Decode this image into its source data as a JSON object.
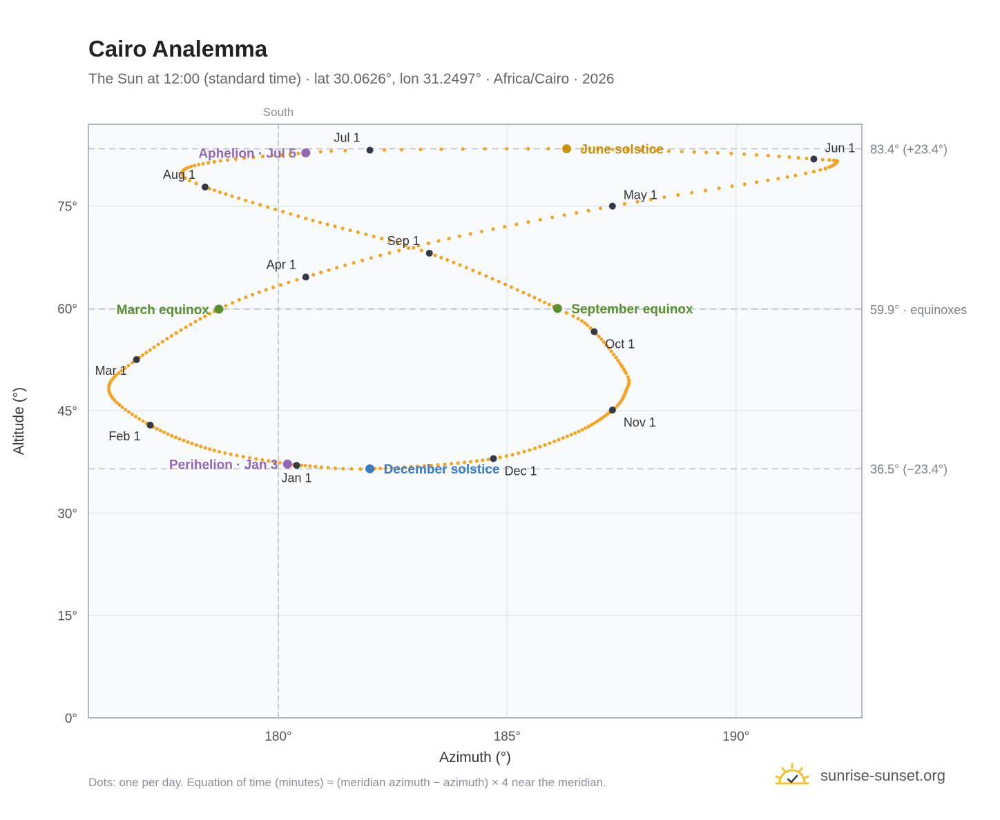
{
  "header": {
    "title": "Cairo Analemma",
    "subtitle": "The Sun at 12:00 (standard time) · lat 30.0626°, lon 31.2497° · Africa/Cairo · 2026"
  },
  "footer": {
    "note": "Dots: one per day. Equation of time (minutes) ≈ (meridian azimuth − azimuth) × 4 near the meridian.",
    "brand": "sunrise-sunset.org",
    "brand_icon": "sun-logo-icon"
  },
  "colors": {
    "curve": "#f2a42a",
    "marker": "#333a45",
    "equinox": "#5a8f32",
    "june_solstice": "#c9900f",
    "december_solstice": "#3a7bbf",
    "apsis": "#9466b3",
    "plot_bg": "#f8fafc",
    "grid": "#e3e8ee",
    "frame": "#9aa3ae",
    "refline": "#b4c0c8"
  },
  "chart_data": {
    "type": "scatter",
    "title": "Cairo Analemma",
    "xlabel": "Azimuth (°)",
    "ylabel": "Altitude (°)",
    "xlim": [
      175.85,
      192.75
    ],
    "ylim": [
      0,
      87
    ],
    "x_ticks": [
      {
        "value": 180,
        "label": "180°"
      },
      {
        "value": 185,
        "label": "185°"
      },
      {
        "value": 190,
        "label": "190°"
      }
    ],
    "y_ticks": [
      {
        "value": 0,
        "label": "0°"
      },
      {
        "value": 15,
        "label": "15°"
      },
      {
        "value": 30,
        "label": "30°"
      },
      {
        "value": 45,
        "label": "45°"
      },
      {
        "value": 60,
        "label": "60°"
      },
      {
        "value": 75,
        "label": "75°"
      }
    ],
    "grid": true,
    "south_line": {
      "azimuth": 180,
      "label": "South"
    },
    "reference_lines": [
      {
        "altitude": 83.4,
        "label": "83.4° (+23.4°)"
      },
      {
        "altitude": 59.9,
        "label": "59.9° · equinoxes"
      },
      {
        "altitude": 36.5,
        "label": "36.5° (−23.4°)"
      }
    ],
    "series": [
      {
        "marker": "daily-dot",
        "points": [
          {
            "date": "Jan 1",
            "azimuth": 180.4,
            "altitude": 37.0
          },
          {
            "date": "Jan 16",
            "azimuth": 178.6,
            "altitude": 39.2
          },
          {
            "date": "Feb 1",
            "azimuth": 177.2,
            "altitude": 42.9
          },
          {
            "date": "Feb 16",
            "azimuth": 176.3,
            "altitude": 47.9
          },
          {
            "date": "Mar 1",
            "azimuth": 176.9,
            "altitude": 52.5
          },
          {
            "date": "Mar 20",
            "azimuth": 178.7,
            "altitude": 59.9
          },
          {
            "date": "Apr 1",
            "azimuth": 180.6,
            "altitude": 64.6
          },
          {
            "date": "Apr 16",
            "azimuth": 183.5,
            "altitude": 69.9
          },
          {
            "date": "May 1",
            "azimuth": 187.3,
            "altitude": 75.0
          },
          {
            "date": "May 16",
            "azimuth": 191.3,
            "altitude": 79.5
          },
          {
            "date": "May 26",
            "azimuth": 192.2,
            "altitude": 81.4
          },
          {
            "date": "Jun 1",
            "azimuth": 191.7,
            "altitude": 81.9
          },
          {
            "date": "Jun 10",
            "azimuth": 189.6,
            "altitude": 82.8
          },
          {
            "date": "Jun 21",
            "azimuth": 186.3,
            "altitude": 83.4
          },
          {
            "date": "Jul 1",
            "azimuth": 182.0,
            "altitude": 83.2
          },
          {
            "date": "Jul 5",
            "azimuth": 180.6,
            "altitude": 82.8
          },
          {
            "date": "Jul 16",
            "azimuth": 178.6,
            "altitude": 81.5
          },
          {
            "date": "Jul 26",
            "azimuth": 177.9,
            "altitude": 80.0
          },
          {
            "date": "Aug 1",
            "azimuth": 178.4,
            "altitude": 77.8
          },
          {
            "date": "Aug 16",
            "azimuth": 180.6,
            "altitude": 73.2
          },
          {
            "date": "Sep 1",
            "azimuth": 183.3,
            "altitude": 68.1
          },
          {
            "date": "Sep 23",
            "azimuth": 186.1,
            "altitude": 60.0
          },
          {
            "date": "Oct 1",
            "azimuth": 186.9,
            "altitude": 56.6
          },
          {
            "date": "Oct 16",
            "azimuth": 187.6,
            "altitude": 50.5
          },
          {
            "date": "Oct 23",
            "azimuth": 187.6,
            "altitude": 48.0
          },
          {
            "date": "Nov 1",
            "azimuth": 187.3,
            "altitude": 45.1
          },
          {
            "date": "Nov 16",
            "azimuth": 186.4,
            "altitude": 41.5
          },
          {
            "date": "Dec 1",
            "azimuth": 184.7,
            "altitude": 38.0
          },
          {
            "date": "Dec 21",
            "azimuth": 182.0,
            "altitude": 36.5
          },
          {
            "date": "Dec 31",
            "azimuth": 180.5,
            "altitude": 37.0
          }
        ]
      }
    ],
    "month_markers": [
      {
        "label": "Jan 1",
        "azimuth": 180.4,
        "altitude": 37.0,
        "label_pos": "below"
      },
      {
        "label": "Feb 1",
        "azimuth": 177.2,
        "altitude": 42.9,
        "label_pos": "below-left"
      },
      {
        "label": "Mar 1",
        "azimuth": 176.9,
        "altitude": 52.5,
        "label_pos": "below-left"
      },
      {
        "label": "Apr 1",
        "azimuth": 180.6,
        "altitude": 64.6,
        "label_pos": "above-left"
      },
      {
        "label": "May 1",
        "azimuth": 187.3,
        "altitude": 75.0,
        "label_pos": "above-right"
      },
      {
        "label": "Jun 1",
        "azimuth": 191.7,
        "altitude": 81.9,
        "label_pos": "above-right"
      },
      {
        "label": "Jul 1",
        "azimuth": 182.0,
        "altitude": 83.2,
        "label_pos": "above-left"
      },
      {
        "label": "Aug 1",
        "azimuth": 178.4,
        "altitude": 77.8,
        "label_pos": "above-left"
      },
      {
        "label": "Sep 1",
        "azimuth": 183.3,
        "altitude": 68.1,
        "label_pos": "above-left"
      },
      {
        "label": "Oct 1",
        "azimuth": 186.9,
        "altitude": 56.6,
        "label_pos": "below-right"
      },
      {
        "label": "Nov 1",
        "azimuth": 187.3,
        "altitude": 45.1,
        "label_pos": "below-right"
      },
      {
        "label": "Dec 1",
        "azimuth": 184.7,
        "altitude": 38.0,
        "label_pos": "below-right"
      }
    ],
    "events": [
      {
        "label": "June solstice",
        "azimuth": 186.3,
        "altitude": 83.4,
        "color_key": "june_solstice",
        "label_pos": "right"
      },
      {
        "label": "Aphelion · Jul 5",
        "azimuth": 180.6,
        "altitude": 82.8,
        "color_key": "apsis",
        "label_pos": "left"
      },
      {
        "label": "March equinox",
        "azimuth": 178.7,
        "altitude": 59.9,
        "color_key": "equinox",
        "label_pos": "left"
      },
      {
        "label": "September equinox",
        "azimuth": 186.1,
        "altitude": 60.0,
        "color_key": "equinox",
        "label_pos": "right"
      },
      {
        "label": "Perihelion · Jan 3",
        "azimuth": 180.2,
        "altitude": 37.2,
        "color_key": "apsis",
        "label_pos": "left"
      },
      {
        "label": "December solstice",
        "azimuth": 182.0,
        "altitude": 36.5,
        "color_key": "december_solstice",
        "label_pos": "right"
      }
    ]
  }
}
